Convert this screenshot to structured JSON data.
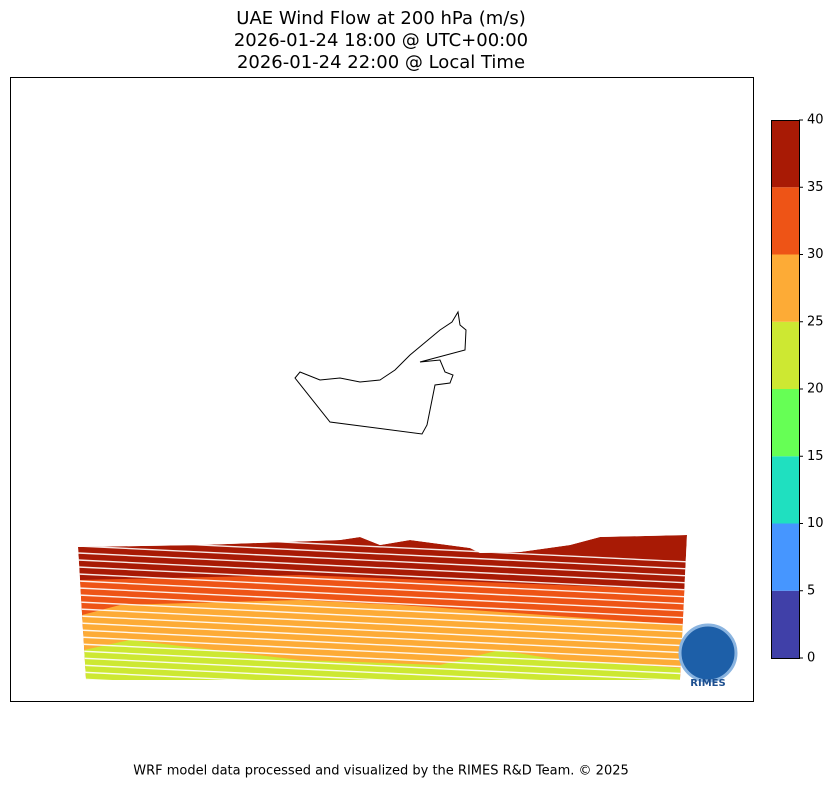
{
  "title": [
    "UAE Wind Flow at 200 hPa (m/s)",
    "2026-01-24 18:00 @ UTC+00:00",
    "2026-01-24 22:00 @ Local Time"
  ],
  "colorbar": {
    "levels": [
      0,
      5,
      10,
      15,
      20,
      25,
      30,
      35,
      40
    ],
    "colors": [
      "#4040a8",
      "#4696ff",
      "#1fe0c0",
      "#66ff55",
      "#cde832",
      "#fdab36",
      "#ee5416",
      "#a81a05"
    ]
  },
  "logo": "RIMES",
  "footer": "WRF model data processed and visualized by the RIMES R&D Team. © 2025"
}
